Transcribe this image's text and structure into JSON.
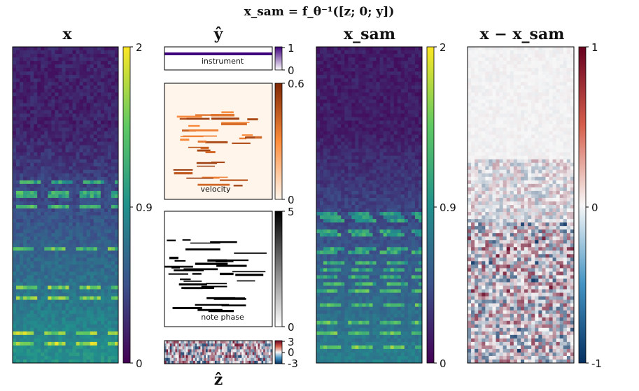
{
  "figure": {
    "suptitle": "x_sam = f_θ⁻¹([z; 0; y])"
  },
  "chart_data": [
    {
      "type": "heatmap",
      "title": "x",
      "colormap": "viridis",
      "colorbar_ticks": [
        "2",
        "0.9",
        "0"
      ],
      "vmin": 0,
      "vmax": 2
    },
    {
      "type": "heatmap",
      "title": "ŷ",
      "panels": [
        {
          "label": "instrument",
          "colormap": "purples",
          "colorbar_ticks": [
            "1",
            "0"
          ],
          "vmin": 0,
          "vmax": 1
        },
        {
          "label": "velocity",
          "colormap": "oranges",
          "colorbar_ticks": [
            "0.6",
            "0"
          ],
          "vmin": 0,
          "vmax": 0.6
        },
        {
          "label": "note phase",
          "colormap": "greys",
          "colorbar_ticks": [
            "5",
            "0"
          ],
          "vmin": 0,
          "vmax": 5
        }
      ]
    },
    {
      "type": "heatmap",
      "title": "ẑ",
      "colormap": "RdBu",
      "colorbar_ticks": [
        "3",
        "0",
        "-3"
      ],
      "vmin": -3,
      "vmax": 3
    },
    {
      "type": "heatmap",
      "title": "x_sam",
      "colormap": "viridis",
      "colorbar_ticks": [
        "2",
        "0.9",
        "0"
      ],
      "vmin": 0,
      "vmax": 2
    },
    {
      "type": "heatmap",
      "title": "x − x_sam",
      "colormap": "RdBu",
      "colorbar_ticks": [
        "1",
        "0",
        "-1"
      ],
      "vmin": -1,
      "vmax": 1
    }
  ],
  "colors": {
    "viridis": [
      "#440154",
      "#3b528b",
      "#21918c",
      "#5ec962",
      "#fde725"
    ],
    "purples": [
      "#fcfbfd",
      "#3f007d"
    ],
    "oranges": [
      "#fff5eb",
      "#fd8d3c",
      "#7f2704"
    ],
    "greys": [
      "#ffffff",
      "#000000"
    ],
    "rdbu": [
      "#053061",
      "#f7f7f7",
      "#67001f"
    ]
  }
}
